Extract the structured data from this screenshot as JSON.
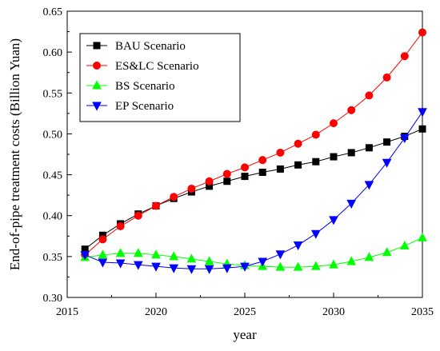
{
  "chart_data": {
    "type": "line",
    "xlabel": "year",
    "ylabel": "End-of-pipe treatment costs (Billion Yuan)",
    "xlim": [
      2015,
      2035
    ],
    "ylim": [
      0.3,
      0.65
    ],
    "x_ticks": [
      "2015",
      "2020",
      "2025",
      "2030",
      "2035"
    ],
    "y_ticks": [
      "0.30",
      "0.35",
      "0.40",
      "0.45",
      "0.50",
      "0.55",
      "0.60",
      "0.65"
    ],
    "grid": false,
    "legend_position": "top-left",
    "x": [
      2016,
      2017,
      2018,
      2019,
      2020,
      2021,
      2022,
      2023,
      2024,
      2025,
      2026,
      2027,
      2028,
      2029,
      2030,
      2031,
      2032,
      2033,
      2034,
      2035
    ],
    "series": [
      {
        "name": "BAU Scenario",
        "color": "#000000",
        "marker": "square",
        "values": [
          0.359,
          0.376,
          0.39,
          0.402,
          0.412,
          0.421,
          0.429,
          0.436,
          0.442,
          0.448,
          0.453,
          0.457,
          0.462,
          0.466,
          0.472,
          0.477,
          0.483,
          0.49,
          0.497,
          0.506
        ]
      },
      {
        "name": "ES&LC Scenario",
        "color": "#ff0000",
        "marker": "circle",
        "values": [
          0.352,
          0.371,
          0.387,
          0.4,
          0.412,
          0.423,
          0.433,
          0.442,
          0.451,
          0.459,
          0.468,
          0.477,
          0.488,
          0.499,
          0.513,
          0.529,
          0.547,
          0.569,
          0.595,
          0.624
        ]
      },
      {
        "name": "BS Scenario",
        "color": "#00ff00",
        "marker": "triangle-up",
        "values": [
          0.349,
          0.352,
          0.354,
          0.354,
          0.352,
          0.35,
          0.347,
          0.344,
          0.341,
          0.339,
          0.338,
          0.337,
          0.337,
          0.338,
          0.34,
          0.344,
          0.349,
          0.355,
          0.363,
          0.373
        ]
      },
      {
        "name": "EP Scenario",
        "color": "#0000ff",
        "marker": "triangle-down",
        "values": [
          0.352,
          0.343,
          0.342,
          0.34,
          0.338,
          0.336,
          0.335,
          0.335,
          0.336,
          0.338,
          0.344,
          0.353,
          0.364,
          0.378,
          0.395,
          0.415,
          0.438,
          0.465,
          0.495,
          0.527
        ]
      }
    ]
  }
}
